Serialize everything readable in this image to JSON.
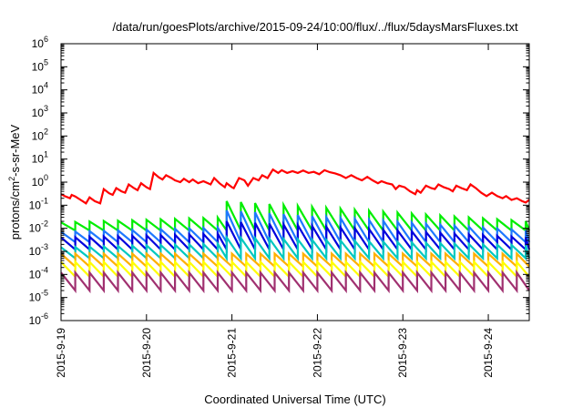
{
  "chart_data": {
    "type": "line",
    "title": "/data/run/goesPlots/archive/2015-09-24/10:00/flux/../flux/5daysMarsFluxes.txt",
    "xlabel": "Coordinated Universal Time (UTC)",
    "ylabel": {
      "base": "protons/cm",
      "exp": "2",
      "rest": "-s-sr-MeV"
    },
    "yscale": "log",
    "ylim": [
      1e-06,
      1000000.0
    ],
    "y_ticks": [
      {
        "value": 1e-06,
        "base": "10",
        "exp": "-6"
      },
      {
        "value": 1e-05,
        "base": "10",
        "exp": "-5"
      },
      {
        "value": 0.0001,
        "base": "10",
        "exp": "-4"
      },
      {
        "value": 0.001,
        "base": "10",
        "exp": "-3"
      },
      {
        "value": 0.01,
        "base": "10",
        "exp": "-2"
      },
      {
        "value": 0.1,
        "base": "10",
        "exp": "-1"
      },
      {
        "value": 1.0,
        "base": "10",
        "exp": "0"
      },
      {
        "value": 10.0,
        "base": "10",
        "exp": "1"
      },
      {
        "value": 100.0,
        "base": "10",
        "exp": "2"
      },
      {
        "value": 1000.0,
        "base": "10",
        "exp": "3"
      },
      {
        "value": 10000.0,
        "base": "10",
        "exp": "4"
      },
      {
        "value": 100000.0,
        "base": "10",
        "exp": "5"
      },
      {
        "value": 1000000.0,
        "base": "10",
        "exp": "6"
      }
    ],
    "xlim": [
      "2015-09-19 00:00",
      "2015-09-24 11:30"
    ],
    "x_ticks": [
      {
        "label": "2015-9-19",
        "date": "2015-09-19 00:00"
      },
      {
        "label": "2015-9-20",
        "date": "2015-09-20 00:00"
      },
      {
        "label": "2015-9-21",
        "date": "2015-09-21 00:00"
      },
      {
        "label": "2015-9-22",
        "date": "2015-09-22 00:00"
      },
      {
        "label": "2015-9-23",
        "date": "2015-09-23 00:00"
      },
      {
        "label": "2015-9-24",
        "date": "2015-09-24 00:00"
      }
    ],
    "grid": false,
    "legend": "none",
    "series": [
      {
        "color": "#ff0000",
        "points": [
          [
            "2015-09-19 00:00",
            0.3
          ],
          [
            "2015-09-19 01:00",
            0.25
          ],
          [
            "2015-09-19 02:30",
            0.2
          ],
          [
            "2015-09-19 03:00",
            0.28
          ],
          [
            "2015-09-19 04:00",
            0.24
          ],
          [
            "2015-09-19 05:30",
            0.17
          ],
          [
            "2015-09-19 07:00",
            0.12
          ],
          [
            "2015-09-19 08:00",
            0.22
          ],
          [
            "2015-09-19 09:30",
            0.15
          ],
          [
            "2015-09-19 11:00",
            0.12
          ],
          [
            "2015-09-19 12:00",
            0.5
          ],
          [
            "2015-09-19 13:30",
            0.33
          ],
          [
            "2015-09-19 14:30",
            0.28
          ],
          [
            "2015-09-19 15:30",
            0.55
          ],
          [
            "2015-09-19 17:00",
            0.4
          ],
          [
            "2015-09-19 18:00",
            0.35
          ],
          [
            "2015-09-19 19:00",
            0.8
          ],
          [
            "2015-09-19 20:30",
            0.55
          ],
          [
            "2015-09-19 21:30",
            0.45
          ],
          [
            "2015-09-19 22:30",
            0.9
          ],
          [
            "2015-09-20 00:00",
            0.6
          ],
          [
            "2015-09-20 01:00",
            0.5
          ],
          [
            "2015-09-20 02:00",
            2.5
          ],
          [
            "2015-09-20 03:30",
            1.6
          ],
          [
            "2015-09-20 04:30",
            1.3
          ],
          [
            "2015-09-20 05:30",
            2.0
          ],
          [
            "2015-09-20 07:00",
            1.5
          ],
          [
            "2015-09-20 08:00",
            1.2
          ],
          [
            "2015-09-20 09:30",
            1.0
          ],
          [
            "2015-09-20 10:30",
            1.4
          ],
          [
            "2015-09-20 12:00",
            1.0
          ],
          [
            "2015-09-20 13:00",
            1.3
          ],
          [
            "2015-09-20 14:30",
            0.9
          ],
          [
            "2015-09-20 16:00",
            1.1
          ],
          [
            "2015-09-20 18:00",
            0.8
          ],
          [
            "2015-09-20 19:00",
            1.5
          ],
          [
            "2015-09-20 20:30",
            0.9
          ],
          [
            "2015-09-20 22:00",
            0.6
          ],
          [
            "2015-09-20 22:30",
            0.9
          ],
          [
            "2015-09-21 00:00",
            0.6
          ],
          [
            "2015-09-21 00:30",
            0.55
          ],
          [
            "2015-09-21 02:00",
            1.5
          ],
          [
            "2015-09-21 03:30",
            1.2
          ],
          [
            "2015-09-21 04:30",
            0.7
          ],
          [
            "2015-09-21 06:00",
            1.5
          ],
          [
            "2015-09-21 07:30",
            1.2
          ],
          [
            "2015-09-21 08:30",
            2.0
          ],
          [
            "2015-09-21 10:00",
            1.5
          ],
          [
            "2015-09-21 11:30",
            3.5
          ],
          [
            "2015-09-21 13:00",
            2.5
          ],
          [
            "2015-09-21 14:00",
            3.3
          ],
          [
            "2015-09-21 15:30",
            2.5
          ],
          [
            "2015-09-21 17:00",
            3.0
          ],
          [
            "2015-09-21 18:30",
            2.5
          ],
          [
            "2015-09-21 20:00",
            3.2
          ],
          [
            "2015-09-21 21:30",
            2.5
          ],
          [
            "2015-09-21 23:00",
            2.8
          ],
          [
            "2015-09-22 00:30",
            2.2
          ],
          [
            "2015-09-22 02:00",
            3.3
          ],
          [
            "2015-09-22 03:30",
            2.7
          ],
          [
            "2015-09-22 05:00",
            2.4
          ],
          [
            "2015-09-22 06:30",
            2.0
          ],
          [
            "2015-09-22 08:00",
            1.5
          ],
          [
            "2015-09-22 09:30",
            2.0
          ],
          [
            "2015-09-22 11:00",
            1.5
          ],
          [
            "2015-09-22 12:30",
            1.2
          ],
          [
            "2015-09-22 14:00",
            1.7
          ],
          [
            "2015-09-22 15:30",
            1.2
          ],
          [
            "2015-09-22 17:00",
            0.9
          ],
          [
            "2015-09-22 18:00",
            1.1
          ],
          [
            "2015-09-22 19:30",
            0.9
          ],
          [
            "2015-09-22 21:00",
            0.8
          ],
          [
            "2015-09-22 22:00",
            0.5
          ],
          [
            "2015-09-22 23:00",
            0.7
          ],
          [
            "2015-09-23 00:30",
            0.6
          ],
          [
            "2015-09-23 02:00",
            0.4
          ],
          [
            "2015-09-23 03:30",
            0.3
          ],
          [
            "2015-09-23 04:00",
            0.45
          ],
          [
            "2015-09-23 05:00",
            0.35
          ],
          [
            "2015-09-23 06:30",
            0.7
          ],
          [
            "2015-09-23 08:00",
            0.55
          ],
          [
            "2015-09-23 09:00",
            0.5
          ],
          [
            "2015-09-23 10:00",
            0.8
          ],
          [
            "2015-09-23 11:30",
            0.6
          ],
          [
            "2015-09-23 13:00",
            0.5
          ],
          [
            "2015-09-23 14:00",
            0.4
          ],
          [
            "2015-09-23 15:00",
            0.7
          ],
          [
            "2015-09-23 16:30",
            0.55
          ],
          [
            "2015-09-23 18:00",
            0.45
          ],
          [
            "2015-09-23 19:00",
            0.8
          ],
          [
            "2015-09-23 20:30",
            0.55
          ],
          [
            "2015-09-23 22:00",
            0.35
          ],
          [
            "2015-09-23 23:30",
            0.25
          ],
          [
            "2015-09-24 01:00",
            0.35
          ],
          [
            "2015-09-24 02:30",
            0.25
          ],
          [
            "2015-09-24 04:00",
            0.2
          ],
          [
            "2015-09-24 05:00",
            0.25
          ],
          [
            "2015-09-24 06:30",
            0.17
          ],
          [
            "2015-09-24 08:00",
            0.2
          ],
          [
            "2015-09-24 09:30",
            0.15
          ],
          [
            "2015-09-24 10:30",
            0.13
          ],
          [
            "2015-09-24 11:30",
            0.17
          ]
        ]
      },
      {
        "color": "#00ee00",
        "pattern": "sawtooth",
        "period_hours": 4,
        "segments": [
          {
            "from": "2015-09-19 00:00",
            "to": "2015-09-20 22:30",
            "peak_start": 0.018,
            "peak_end": 0.03,
            "trough": 0.008
          },
          {
            "from": "2015-09-20 22:30",
            "to": "2015-09-24 11:30",
            "peak_start": 0.15,
            "peak_end": 0.02,
            "trough": 0.008
          }
        ]
      },
      {
        "color": "#1e78ff",
        "pattern": "sawtooth",
        "period_hours": 4,
        "segments": [
          {
            "from": "2015-09-19 00:00",
            "to": "2015-09-20 22:30",
            "peak_start": 0.007,
            "peak_end": 0.011,
            "trough": 0.0025
          },
          {
            "from": "2015-09-20 22:30",
            "to": "2015-09-24 11:30",
            "peak_start": 0.06,
            "peak_end": 0.008,
            "trough": 0.0025
          }
        ]
      },
      {
        "color": "#0000dd",
        "pattern": "sawtooth",
        "period_hours": 4,
        "segments": [
          {
            "from": "2015-09-19 00:00",
            "to": "2015-09-20 22:30",
            "peak_start": 0.004,
            "peak_end": 0.006,
            "trough": 0.0012
          },
          {
            "from": "2015-09-20 22:30",
            "to": "2015-09-24 11:30",
            "peak_start": 0.02,
            "peak_end": 0.004,
            "trough": 0.0012
          }
        ]
      },
      {
        "color": "#00c8c0",
        "pattern": "sawtooth",
        "period_hours": 4,
        "segments": [
          {
            "from": "2015-09-19 00:00",
            "to": "2015-09-20 22:30",
            "peak_start": 0.0015,
            "peak_end": 0.0022,
            "trough": 0.0005
          },
          {
            "from": "2015-09-20 22:30",
            "to": "2015-09-24 11:30",
            "peak_start": 0.004,
            "peak_end": 0.0018,
            "trough": 0.0005
          }
        ]
      },
      {
        "color": "#ffb000",
        "pattern": "sawtooth",
        "period_hours": 4,
        "segments": [
          {
            "from": "2015-09-19 00:00",
            "to": "2015-09-24 11:30",
            "peak_start": 0.0008,
            "peak_end": 0.0008,
            "trough": 0.00022
          }
        ]
      },
      {
        "color": "#ffff00",
        "pattern": "sawtooth",
        "period_hours": 4,
        "segments": [
          {
            "from": "2015-09-19 00:00",
            "to": "2015-09-24 11:30",
            "peak_start": 0.00035,
            "peak_end": 0.00035,
            "trough": 8e-05
          }
        ]
      },
      {
        "color": "#a03070",
        "pattern": "sawtooth",
        "period_hours": 4,
        "segments": [
          {
            "from": "2015-09-19 00:00",
            "to": "2015-09-24 11:30",
            "peak_start": 0.00012,
            "peak_end": 0.00012,
            "trough": 2e-05
          }
        ]
      }
    ]
  }
}
